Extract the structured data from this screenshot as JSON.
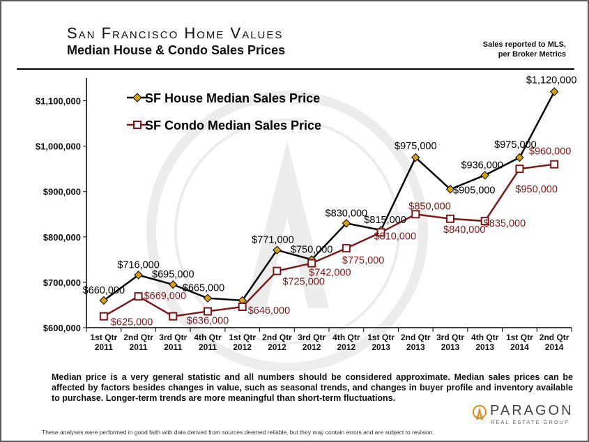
{
  "header": {
    "title": "San Francisco Home Values",
    "subtitle": "Median House & Condo Sales Prices",
    "source_line1": "Sales reported to MLS,",
    "source_line2": "per Broker Metrics"
  },
  "chart_data": {
    "type": "line",
    "categories": [
      [
        "1st Qtr",
        "2011"
      ],
      [
        "2nd Qtr",
        "2011"
      ],
      [
        "3rd Qtr",
        "2011"
      ],
      [
        "4th Qtr",
        "2011"
      ],
      [
        "1st Qtr",
        "2012"
      ],
      [
        "2nd Qtr",
        "2012"
      ],
      [
        "3rd Qtr",
        "2012"
      ],
      [
        "4th Qtr",
        "2012"
      ],
      [
        "1st Qtr",
        "2013"
      ],
      [
        "2nd Qtr",
        "2013"
      ],
      [
        "3rd Qtr",
        "2013"
      ],
      [
        "4th Qtr",
        "2013"
      ],
      [
        "1st Qtr",
        "2014"
      ],
      [
        "2nd Qtr",
        "2014"
      ]
    ],
    "series": [
      {
        "name": "SF House Median Sales Price",
        "color": "#000000",
        "marker": "diamond",
        "marker_color": "#d4a017",
        "values": [
          660000,
          716000,
          695000,
          665000,
          660000,
          771000,
          750000,
          830000,
          815000,
          975000,
          905000,
          936000,
          975000,
          1120000
        ],
        "labels": [
          "$660,000",
          "$716,000",
          "$695,000",
          "$665,000",
          "",
          "$771,000",
          "$750,000",
          "$830,000",
          "$815,000",
          "$975,000",
          "$905,000",
          "$936,000",
          "$975,000",
          "$1,120,000"
        ]
      },
      {
        "name": "SF Condo Median Sales Price",
        "color": "#7b1818",
        "marker": "square",
        "marker_color": "#ffffff",
        "values": [
          625000,
          669000,
          625000,
          636000,
          646000,
          725000,
          742000,
          775000,
          810000,
          850000,
          840000,
          835000,
          950000,
          960000
        ],
        "labels": [
          "$625,000",
          "$669,000",
          "",
          "$636,000",
          "$646,000",
          "$725,000",
          "$742,000",
          "$775,000",
          "$810,000",
          "$850,000",
          "$840,000",
          "$835,000",
          "$950,000",
          "$960,000"
        ]
      }
    ],
    "y_ticks": [
      600000,
      700000,
      800000,
      900000,
      1000000,
      1100000
    ],
    "y_tick_labels": [
      "$600,000",
      "$700,000",
      "$800,000",
      "$900,000",
      "$1,000,000",
      "$1,100,000"
    ],
    "ylim": [
      600000,
      1150000
    ],
    "grid": false,
    "legend": "top-left"
  },
  "notes": {
    "disclaimer": "Median price is a very general statistic and all numbers should be considered approximate. Median sales prices can be affected by factors besides changes in value, such as seasonal trends, and changes in buyer profile and inventory available to purchase. Longer-term trends are more meaningful than short-term fluctuations.",
    "footer": "These analyses were performed in good faith with data derived from sources deemed reliable, but they may contain errors and are subject to revision."
  },
  "brand": {
    "name": "PARAGON",
    "tagline": "REAL ESTATE GROUP",
    "accent": "#d98c1f"
  }
}
